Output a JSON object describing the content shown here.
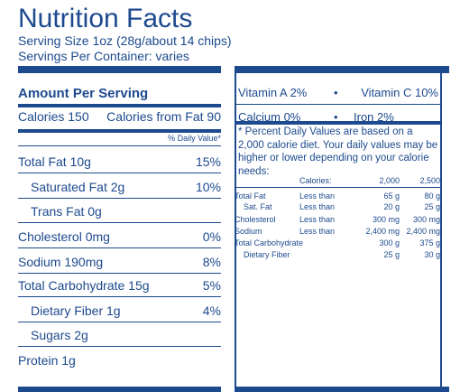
{
  "title": "Nutrition Facts",
  "serving_size": "Serving Size 1oz (28g/about 14 chips)",
  "servings_per_container": "Servings Per Container:  varies",
  "amount_per_serving": "Amount Per Serving",
  "calories": {
    "label": "Calories 150",
    "from_fat": "Calories from Fat 90"
  },
  "daily_value_header": "% Daily Value*",
  "nutrients": [
    {
      "label": "Total Fat 10g",
      "dv": "15%"
    },
    {
      "label": "Saturated Fat 2g",
      "dv": "10%"
    },
    {
      "label": "Trans Fat 0g",
      "dv": ""
    },
    {
      "label": "Cholesterol 0mg",
      "dv": "0%"
    },
    {
      "label": "Sodium 190mg",
      "dv": "8%"
    },
    {
      "label": "Total Carbohydrate 15g",
      "dv": "5%"
    },
    {
      "label": "Dietary Fiber 1g",
      "dv": "4%"
    },
    {
      "label": "Sugars 2g",
      "dv": ""
    },
    {
      "label": "Protein 1g",
      "dv": ""
    }
  ],
  "vitamins": {
    "vitamin_a": "Vitamin A 2%",
    "vitamin_c": "Vitamin C 10%",
    "calcium": "Calcium 0%",
    "iron": "Iron 2%",
    "bullet": "•"
  },
  "footnote": "* Percent Daily Values are based on a 2,000 calorie diet. Your daily values may be higher or lower depending on your calorie needs:",
  "dv_table": {
    "header": [
      "",
      "Calories:",
      "2,000",
      "2,500"
    ],
    "rows": [
      [
        "Total Fat",
        "Less than",
        "65 g",
        "80 g"
      ],
      [
        "Sat. Fat",
        "Less than",
        "20 g",
        "25 g"
      ],
      [
        "Cholesterol",
        "Less than",
        "300 mg",
        "300 mg"
      ],
      [
        "Sodium",
        "Less than",
        "2,400 mg",
        "2,400 mg"
      ],
      [
        "Total Carbohydrate",
        "",
        "300 g",
        "375 g"
      ],
      [
        "Dietary Fiber",
        "",
        "25 g",
        "30 g"
      ]
    ]
  },
  "colors": {
    "ink": "#1d4a8e",
    "background": "#ffffff"
  }
}
